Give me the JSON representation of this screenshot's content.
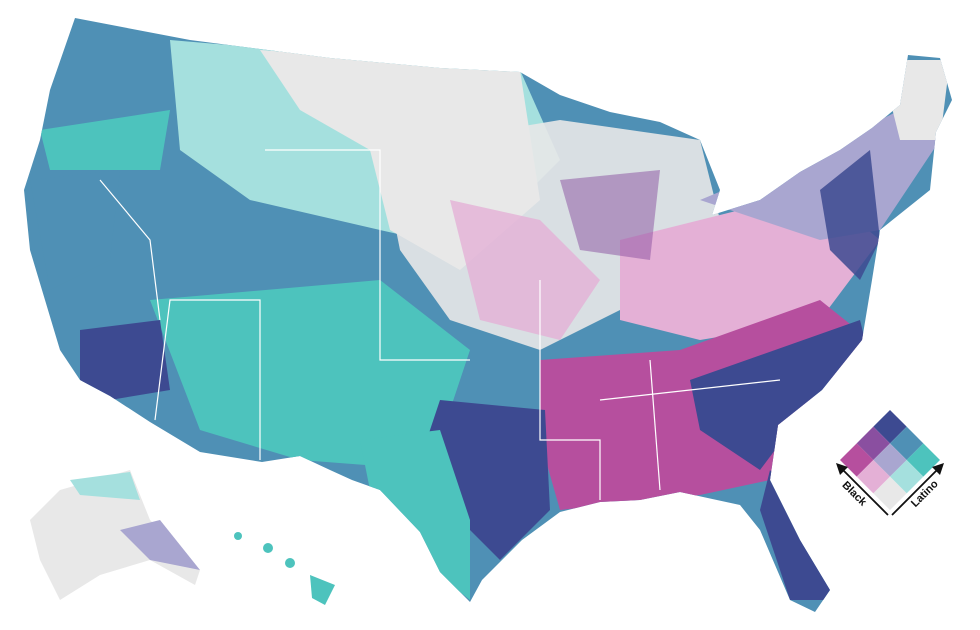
{
  "legend": {
    "black_label": "Black",
    "latino_label": "Latino",
    "colors": [
      [
        "#e8e8e8",
        "#a5e0de",
        "#4dc3bd"
      ],
      [
        "#e4b0d6",
        "#a9a6d0",
        "#4f90b5"
      ],
      [
        "#b64f9e",
        "#8a4fa0",
        "#3d4a91"
      ]
    ]
  }
}
